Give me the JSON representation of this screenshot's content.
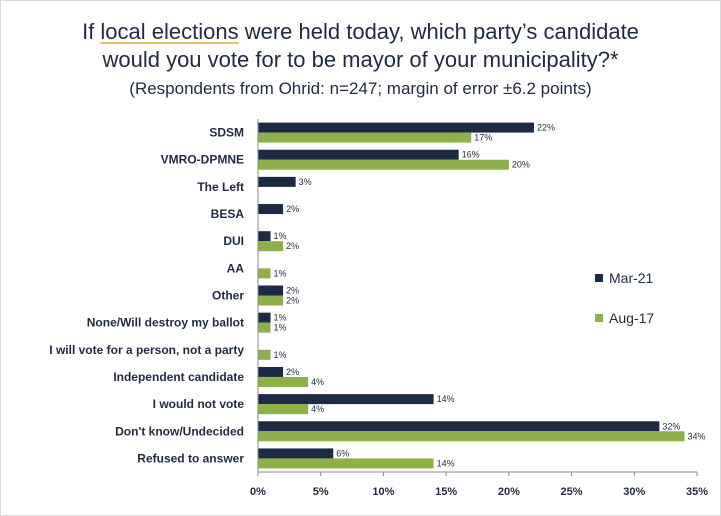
{
  "title_line1_pre": "If ",
  "title_line1_underlined": "local elections",
  "title_line1_post": " were held today, which party’s candidate",
  "title_line2": "would you vote for to be mayor of your municipality?*",
  "subtitle": "(Respondents from Ohrid: n=247; margin of error ±6.2 points)",
  "colors": {
    "mar21": "#1c2a44",
    "aug17": "#8db04a"
  },
  "chart_data": {
    "type": "bar",
    "orientation": "horizontal",
    "categories": [
      "SDSM",
      "VMRO-DPMNE",
      "The Left",
      "BESA",
      "DUI",
      "AA",
      "Other",
      "None/Will destroy my ballot",
      "I will vote for a person, not a party",
      "Independent candidate",
      "I would not vote",
      "Don't know/Undecided",
      "Refused to answer"
    ],
    "series": [
      {
        "name": "Mar-21",
        "values": [
          22,
          16,
          3,
          2,
          1,
          null,
          2,
          1,
          null,
          2,
          14,
          32,
          6
        ]
      },
      {
        "name": "Aug-17",
        "values": [
          17,
          20,
          null,
          null,
          2,
          1,
          2,
          1,
          1,
          4,
          4,
          34,
          14
        ]
      }
    ],
    "value_suffix": "%",
    "xlim": [
      0,
      35
    ],
    "xticks": [
      0,
      5,
      10,
      15,
      20,
      25,
      30,
      35
    ],
    "xtick_labels": [
      "0%",
      "5%",
      "10%",
      "15%",
      "20%",
      "25%",
      "30%",
      "35%"
    ],
    "grid": false,
    "legend_position": "right"
  }
}
